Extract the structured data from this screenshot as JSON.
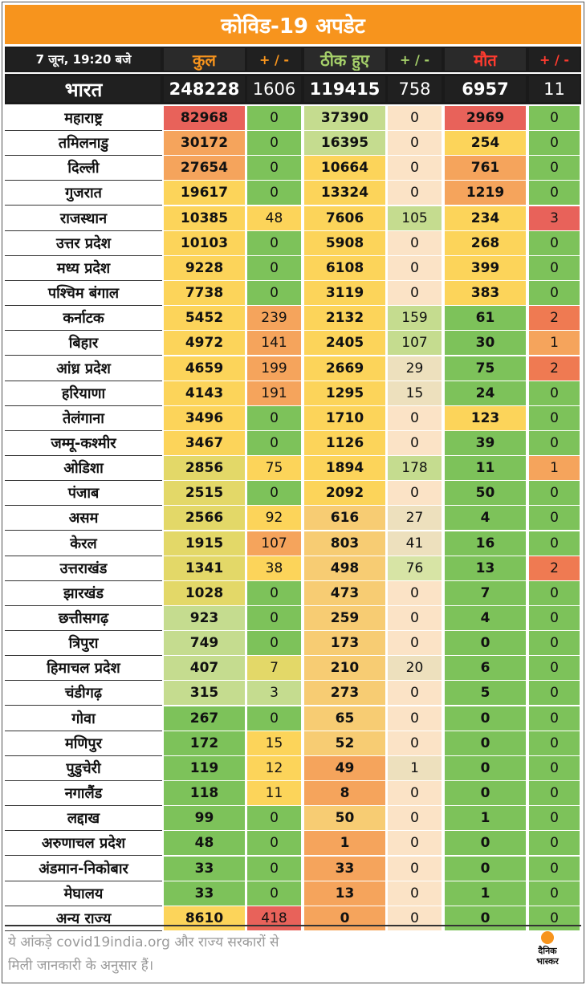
{
  "title": "कोविड-19 अपडेट",
  "header": {
    "date": "7 जून, 19:20 बजे",
    "total": "कुल",
    "delta1": "+ / -",
    "recovered": "ठीक हुए",
    "delta2": "+ / -",
    "deaths": "मौत",
    "delta3": "+ / -"
  },
  "national": {
    "name": "भारत",
    "total": "248228",
    "total_delta": "1606",
    "recovered": "119415",
    "recovered_delta": "758",
    "deaths": "6957",
    "deaths_delta": "11"
  },
  "rows": [
    {
      "state": "महाराष्ट्र",
      "total": "82968",
      "td": "0",
      "rec": "37390",
      "rd": "0",
      "deaths": "2969",
      "dd": "0"
    },
    {
      "state": "तमिलनाडु",
      "total": "30172",
      "td": "0",
      "rec": "16395",
      "rd": "0",
      "deaths": "254",
      "dd": "0"
    },
    {
      "state": "दिल्ली",
      "total": "27654",
      "td": "0",
      "rec": "10664",
      "rd": "0",
      "deaths": "761",
      "dd": "0"
    },
    {
      "state": "गुजरात",
      "total": "19617",
      "td": "0",
      "rec": "13324",
      "rd": "0",
      "deaths": "1219",
      "dd": "0"
    },
    {
      "state": "राजस्थान",
      "total": "10385",
      "td": "48",
      "rec": "7606",
      "rd": "105",
      "deaths": "234",
      "dd": "3"
    },
    {
      "state": "उत्तर प्रदेश",
      "total": "10103",
      "td": "0",
      "rec": "5908",
      "rd": "0",
      "deaths": "268",
      "dd": "0"
    },
    {
      "state": "मध्य प्रदेश",
      "total": "9228",
      "td": "0",
      "rec": "6108",
      "rd": "0",
      "deaths": "399",
      "dd": "0"
    },
    {
      "state": "पश्चिम बंगाल",
      "total": "7738",
      "td": "0",
      "rec": "3119",
      "rd": "0",
      "deaths": "383",
      "dd": "0"
    },
    {
      "state": "कर्नाटक",
      "total": "5452",
      "td": "239",
      "rec": "2132",
      "rd": "159",
      "deaths": "61",
      "dd": "2"
    },
    {
      "state": "बिहार",
      "total": "4972",
      "td": "141",
      "rec": "2405",
      "rd": "107",
      "deaths": "30",
      "dd": "1"
    },
    {
      "state": "आंध्र प्रदेश",
      "total": "4659",
      "td": "199",
      "rec": "2669",
      "rd": "29",
      "deaths": "75",
      "dd": "2"
    },
    {
      "state": "हरियाणा",
      "total": "4143",
      "td": "191",
      "rec": "1295",
      "rd": "15",
      "deaths": "24",
      "dd": "0"
    },
    {
      "state": "तेलंगाना",
      "total": "3496",
      "td": "0",
      "rec": "1710",
      "rd": "0",
      "deaths": "123",
      "dd": "0"
    },
    {
      "state": "जम्मू-कश्मीर",
      "total": "3467",
      "td": "0",
      "rec": "1126",
      "rd": "0",
      "deaths": "39",
      "dd": "0"
    },
    {
      "state": "ओडिशा",
      "total": "2856",
      "td": "75",
      "rec": "1894",
      "rd": "178",
      "deaths": "11",
      "dd": "1"
    },
    {
      "state": "पंजाब",
      "total": "2515",
      "td": "0",
      "rec": "2092",
      "rd": "0",
      "deaths": "50",
      "dd": "0"
    },
    {
      "state": "असम",
      "total": "2566",
      "td": "92",
      "rec": "616",
      "rd": "27",
      "deaths": "4",
      "dd": "0"
    },
    {
      "state": "केरल",
      "total": "1915",
      "td": "107",
      "rec": "803",
      "rd": "41",
      "deaths": "16",
      "dd": "0"
    },
    {
      "state": "उत्तराखंड",
      "total": "1341",
      "td": "38",
      "rec": "498",
      "rd": "76",
      "deaths": "13",
      "dd": "2"
    },
    {
      "state": "झारखंड",
      "total": "1028",
      "td": "0",
      "rec": "473",
      "rd": "0",
      "deaths": "7",
      "dd": "0"
    },
    {
      "state": "छत्तीसगढ़",
      "total": "923",
      "td": "0",
      "rec": "259",
      "rd": "0",
      "deaths": "4",
      "dd": "0"
    },
    {
      "state": "त्रिपुरा",
      "total": "749",
      "td": "0",
      "rec": "173",
      "rd": "0",
      "deaths": "0",
      "dd": "0"
    },
    {
      "state": "हिमाचल प्रदेश",
      "total": "407",
      "td": "7",
      "rec": "210",
      "rd": "20",
      "deaths": "6",
      "dd": "0"
    },
    {
      "state": "चंडीगढ़",
      "total": "315",
      "td": "3",
      "rec": "273",
      "rd": "0",
      "deaths": "5",
      "dd": "0"
    },
    {
      "state": "गोवा",
      "total": "267",
      "td": "0",
      "rec": "65",
      "rd": "0",
      "deaths": "0",
      "dd": "0"
    },
    {
      "state": "मणिपुर",
      "total": "172",
      "td": "15",
      "rec": "52",
      "rd": "0",
      "deaths": "0",
      "dd": "0"
    },
    {
      "state": "पुडुचेरी",
      "total": "119",
      "td": "12",
      "rec": "49",
      "rd": "1",
      "deaths": "0",
      "dd": "0"
    },
    {
      "state": "नगालैंड",
      "total": "118",
      "td": "11",
      "rec": "8",
      "rd": "0",
      "deaths": "0",
      "dd": "0"
    },
    {
      "state": "लद्दाख",
      "total": "99",
      "td": "0",
      "rec": "50",
      "rd": "0",
      "deaths": "1",
      "dd": "0"
    },
    {
      "state": "अरुणाचल प्रदेश",
      "total": "48",
      "td": "0",
      "rec": "1",
      "rd": "0",
      "deaths": "0",
      "dd": "0"
    },
    {
      "state": "अंडमान-निकोबार",
      "total": "33",
      "td": "0",
      "rec": "33",
      "rd": "0",
      "deaths": "0",
      "dd": "0"
    },
    {
      "state": "मेघालय",
      "total": "33",
      "td": "0",
      "rec": "13",
      "rd": "0",
      "deaths": "1",
      "dd": "0"
    },
    {
      "state": "अन्य राज्य",
      "total": "8610",
      "td": "418",
      "rec": "0",
      "rd": "0",
      "deaths": "0",
      "dd": "0"
    }
  ],
  "colors": {
    "title_bg": "#f7941d",
    "header_bg": "#1a1a1a",
    "red": "#e8625a",
    "orange": "#f5a45c",
    "yellow": "#fcd45a",
    "light_green": "#c5dc8f",
    "green": "#7dc25a",
    "peach": "#fbe3c6"
  },
  "footer": {
    "note_line1": "ये आंकड़े covid19india.org और राज्य सरकारों से",
    "note_line2": "मिली जानकारी के अनुसार हैं।",
    "brand_line1": "दैनिक",
    "brand_line2": "भास्कर"
  }
}
